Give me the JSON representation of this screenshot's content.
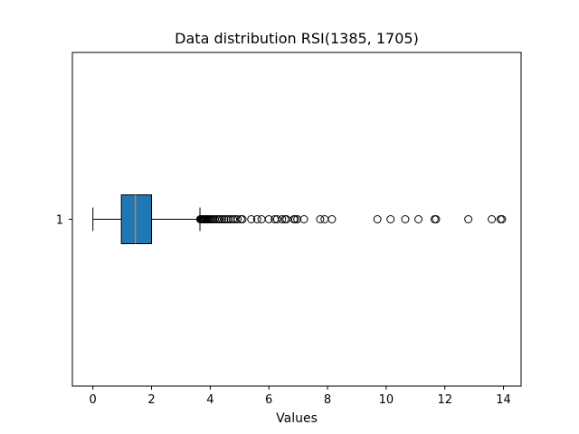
{
  "chart_data": {
    "type": "boxplot",
    "orientation": "horizontal",
    "title": "Data distribution RSI(1385, 1705)",
    "xlabel": "Values",
    "ylabel": "",
    "xlim": [
      -0.7,
      14.6
    ],
    "x_ticks": [
      0,
      2,
      4,
      6,
      8,
      10,
      12,
      14
    ],
    "y_ticks": [
      "1"
    ],
    "grid": false,
    "series": [
      {
        "category": "1",
        "whisker_low": 0.0,
        "q1": 0.97,
        "median": 1.45,
        "q3": 2.0,
        "whisker_high": 3.65,
        "box_color": "#1f77b4",
        "median_color": "#ff7f0e",
        "outliers": [
          3.66,
          3.68,
          3.7,
          3.72,
          3.74,
          3.76,
          3.78,
          3.8,
          3.83,
          3.86,
          3.9,
          3.93,
          3.97,
          4.0,
          4.05,
          4.1,
          4.15,
          4.22,
          4.28,
          4.33,
          4.4,
          4.48,
          4.55,
          4.62,
          4.7,
          4.78,
          4.85,
          4.93,
          5.05,
          5.1,
          5.4,
          5.6,
          5.75,
          6.0,
          6.2,
          6.28,
          6.45,
          6.55,
          6.6,
          6.85,
          6.9,
          6.97,
          7.2,
          7.75,
          7.9,
          8.15,
          9.7,
          10.15,
          10.65,
          11.1,
          11.65,
          11.7,
          12.8,
          13.6,
          13.9,
          13.95
        ]
      }
    ]
  }
}
